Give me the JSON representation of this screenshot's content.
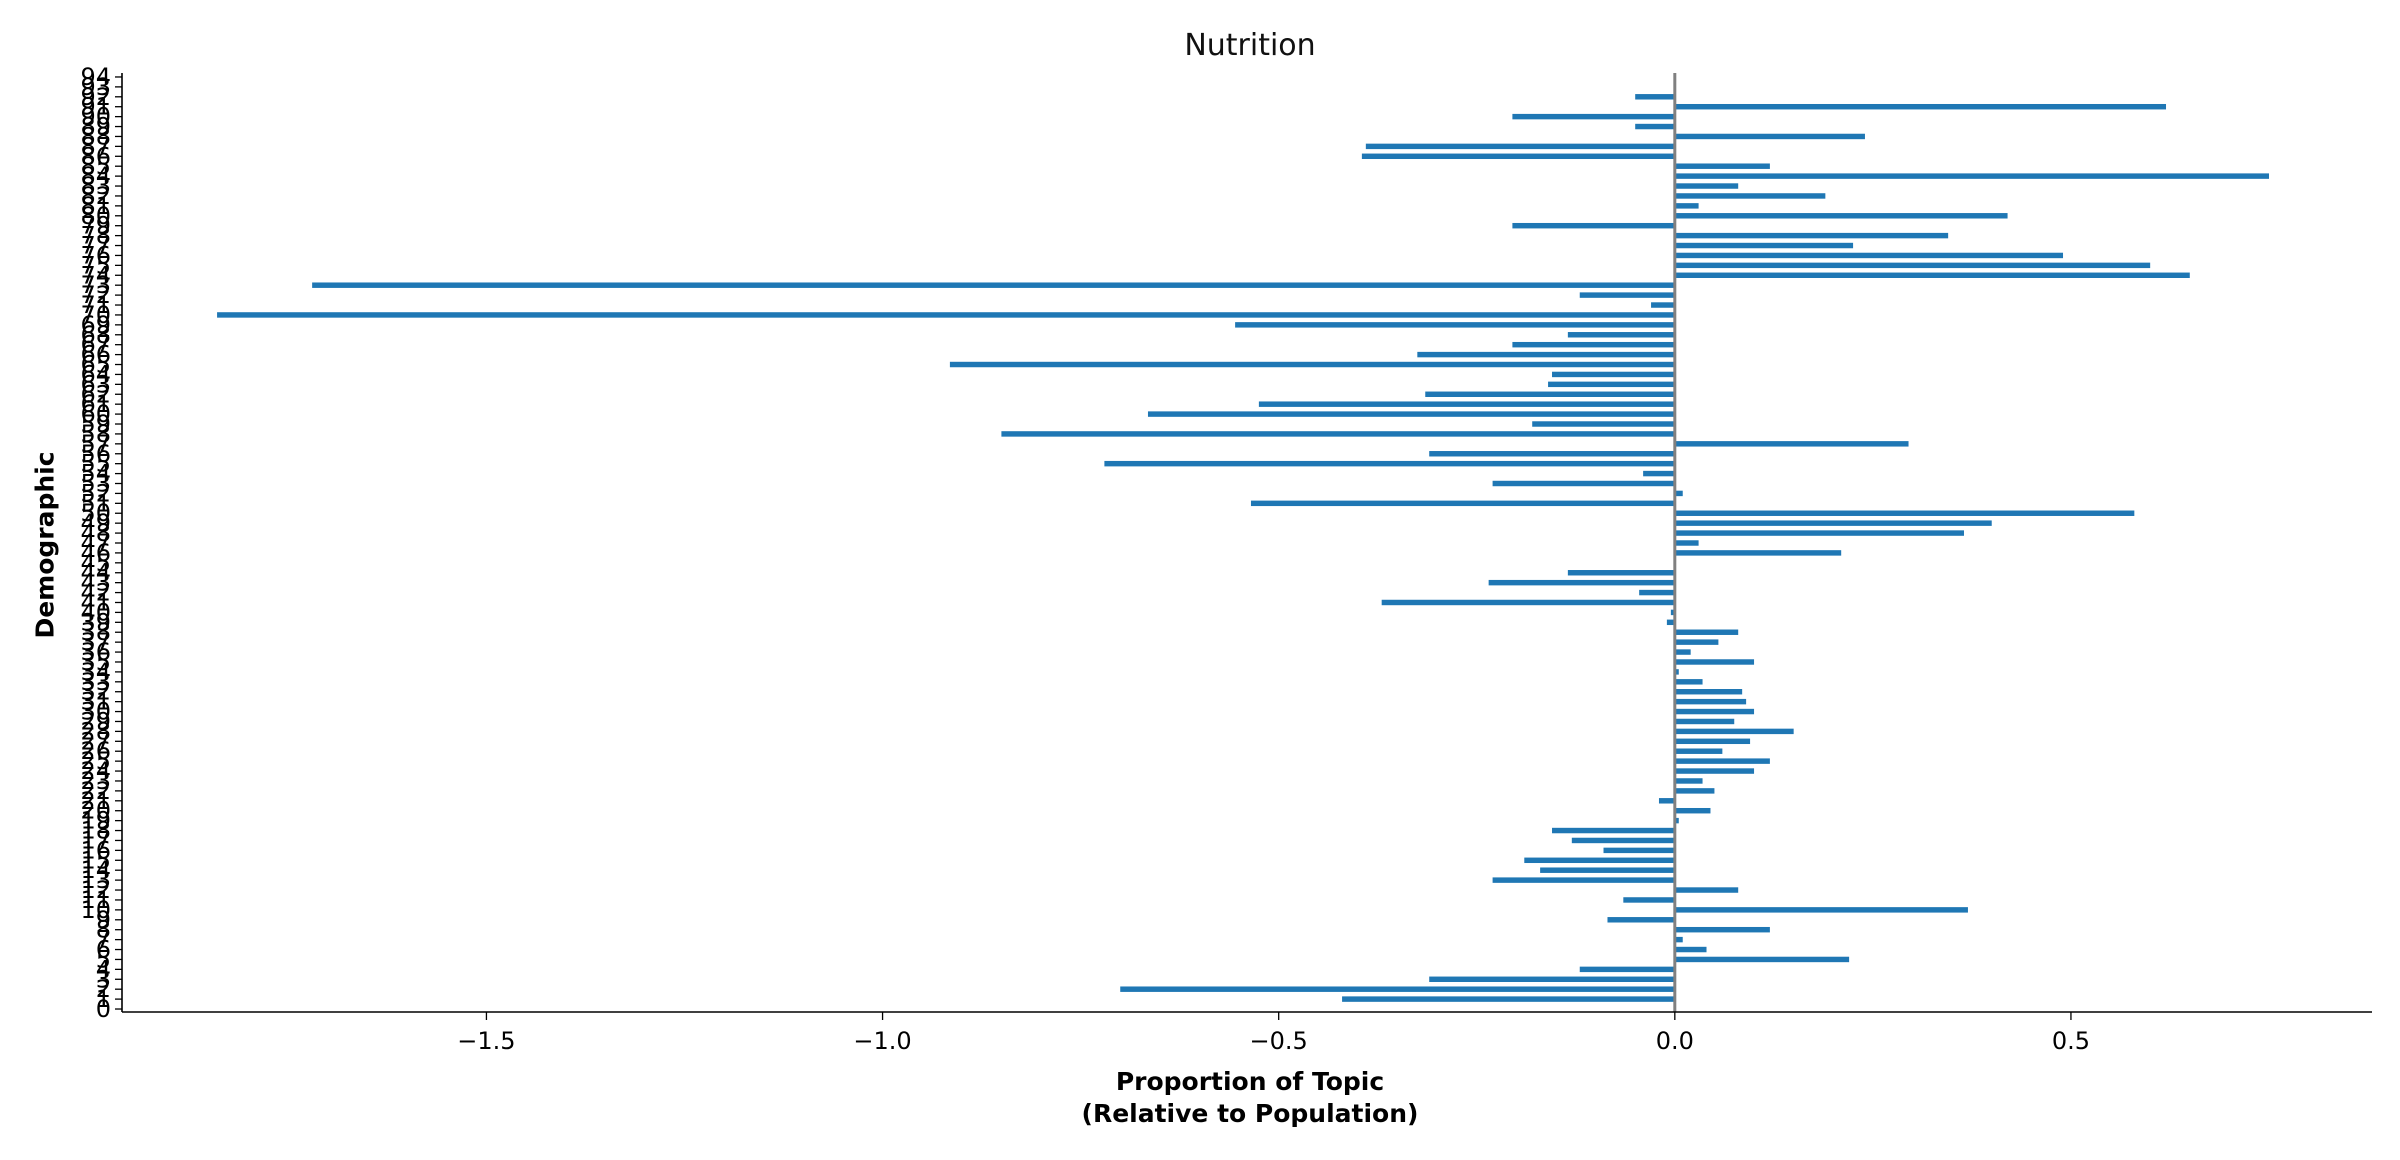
{
  "chart_data": {
    "type": "bar",
    "orientation": "horizontal",
    "title": "Nutrition",
    "xlabel": "Proportion of Topic\n(Relative to Population)",
    "ylabel": "Demographic",
    "xlim": [
      -1.96,
      0.88
    ],
    "ylim": [
      -0.3,
      94.4
    ],
    "xticks": [
      -1.5,
      -1.0,
      -0.5,
      0.0,
      0.5
    ],
    "xtick_labels": [
      "−1.5",
      "−1.0",
      "−0.5",
      "0.0",
      "0.5"
    ],
    "grid": false,
    "zero_line": true,
    "colors": {
      "bar": "#1f77b4",
      "zero_line": "#808080",
      "axis": "#000000"
    },
    "categories": [
      "0",
      "1",
      "2",
      "3",
      "4",
      "5",
      "6",
      "7",
      "8",
      "9",
      "10",
      "11",
      "12",
      "13",
      "14",
      "15",
      "16",
      "17",
      "18",
      "19",
      "20",
      "21",
      "22",
      "23",
      "24",
      "25",
      "26",
      "27",
      "28",
      "29",
      "30",
      "31",
      "32",
      "33",
      "34",
      "35",
      "36",
      "37",
      "38",
      "39",
      "40",
      "41",
      "42",
      "43",
      "44",
      "45",
      "46",
      "47",
      "48",
      "49",
      "50",
      "51",
      "52",
      "53",
      "54",
      "55",
      "56",
      "57",
      "58",
      "59",
      "60",
      "61",
      "62",
      "63",
      "64",
      "65",
      "66",
      "67",
      "68",
      "69",
      "70",
      "71",
      "72",
      "73",
      "74",
      "75",
      "76",
      "77",
      "78",
      "79",
      "80",
      "81",
      "82",
      "83",
      "84",
      "85",
      "86",
      "87",
      "88",
      "89",
      "90",
      "91",
      "92",
      "93",
      "94"
    ],
    "values": [
      0,
      -0.42,
      -0.7,
      -0.31,
      -0.12,
      0.22,
      0.04,
      0.01,
      0.12,
      -0.085,
      0.37,
      -0.065,
      0.08,
      -0.23,
      -0.17,
      -0.19,
      -0.09,
      -0.13,
      -0.155,
      0.005,
      0.045,
      -0.02,
      0.05,
      0.035,
      0.1,
      0.12,
      0.06,
      0.095,
      0.15,
      0.075,
      0.1,
      0.09,
      0.085,
      0.035,
      0.005,
      0.1,
      0.02,
      0.055,
      0.08,
      -0.01,
      -0.005,
      -0.37,
      -0.045,
      -0.235,
      -0.135,
      0,
      0.21,
      0.03,
      0.365,
      0.4,
      0.58,
      -0.535,
      0.01,
      -0.23,
      -0.04,
      -0.72,
      -0.31,
      0.295,
      -0.85,
      -0.18,
      -0.665,
      -0.525,
      -0.315,
      -0.16,
      -0.155,
      -0.915,
      -0.325,
      -0.205,
      -0.135,
      -0.555,
      -1.84,
      -0.03,
      -0.12,
      -1.72,
      0.65,
      0.6,
      0.49,
      0.225,
      0.345,
      -0.205,
      0.42,
      0.03,
      0.19,
      0.08,
      0.75,
      0.12,
      -0.395,
      -0.39,
      0.24,
      -0.05,
      -0.205,
      0.62,
      -0.05,
      0,
      0
    ]
  }
}
